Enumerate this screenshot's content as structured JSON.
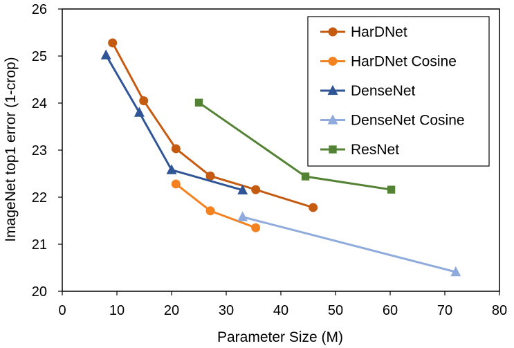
{
  "chart_data": {
    "type": "line",
    "xlabel": "Parameter Size (M)",
    "ylabel": "ImageNet top1 error (1-crop)",
    "xlim": [
      0,
      80
    ],
    "ylim": [
      20,
      26
    ],
    "xticks": [
      "0",
      "10",
      "20",
      "30",
      "40",
      "50",
      "60",
      "70",
      "80"
    ],
    "yticks": [
      "20",
      "21",
      "22",
      "23",
      "24",
      "25",
      "26"
    ],
    "grid": false,
    "legend_position": "top-right",
    "series": [
      {
        "name": "HarDNet",
        "color": "#C55A11",
        "marker": "circle",
        "x": [
          9.2,
          14.9,
          20.8,
          27.1,
          35.4,
          45.9
        ],
        "y": [
          25.28,
          24.05,
          23.03,
          22.45,
          22.16,
          21.78
        ]
      },
      {
        "name": "HarDNet Cosine",
        "color": "#F58220",
        "marker": "circle",
        "x": [
          20.8,
          27.1,
          35.4
        ],
        "y": [
          22.28,
          21.71,
          21.35
        ]
      },
      {
        "name": "DenseNet",
        "color": "#2F5597",
        "marker": "triangle",
        "x": [
          8.0,
          14.1,
          20.0,
          33.0
        ],
        "y": [
          25.02,
          23.8,
          22.58,
          22.15
        ]
      },
      {
        "name": "DenseNet Cosine",
        "color": "#8FAADC",
        "marker": "triangle",
        "x": [
          33.0,
          72.0
        ],
        "y": [
          21.58,
          20.41
        ]
      },
      {
        "name": "ResNet",
        "color": "#548235",
        "marker": "square",
        "x": [
          25.0,
          44.5,
          60.2
        ],
        "y": [
          24.01,
          22.44,
          22.16
        ]
      }
    ]
  }
}
